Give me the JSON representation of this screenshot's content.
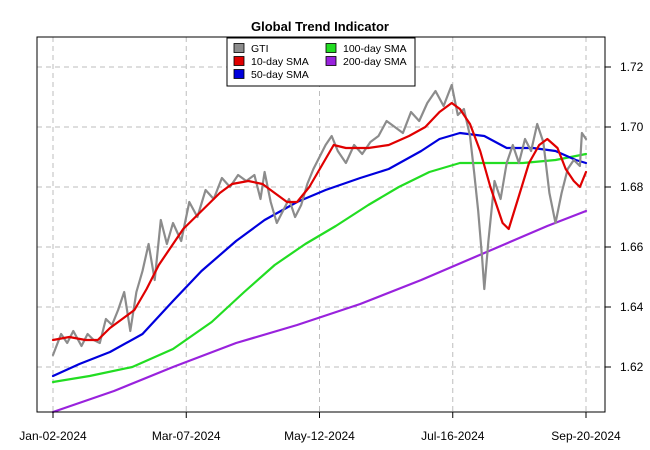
{
  "chart_data": {
    "type": "line",
    "title": "Global Trend Indicator",
    "xlabel": "",
    "ylabel": "",
    "x_start": "2024-01-02",
    "x_end": "2024-09-20",
    "x_ticks": [
      "Jan-02-2024",
      "Mar-07-2024",
      "May-12-2024",
      "Jul-16-2024",
      "Sep-20-2024"
    ],
    "y_ticks": [
      "1.62",
      "1.64",
      "1.66",
      "1.68",
      "1.70",
      "1.72"
    ],
    "ylim": [
      1.605,
      1.73
    ],
    "grid": true,
    "legend_position": "top-center",
    "series": [
      {
        "name": "GTI",
        "color": "#8c8c8c",
        "points": [
          [
            "2024-01-02",
            1.624
          ],
          [
            "2024-01-06",
            1.631
          ],
          [
            "2024-01-09",
            1.628
          ],
          [
            "2024-01-12",
            1.632
          ],
          [
            "2024-01-16",
            1.627
          ],
          [
            "2024-01-19",
            1.631
          ],
          [
            "2024-01-22",
            1.629
          ],
          [
            "2024-01-25",
            1.628
          ],
          [
            "2024-01-28",
            1.636
          ],
          [
            "2024-01-31",
            1.634
          ],
          [
            "2024-02-03",
            1.639
          ],
          [
            "2024-02-06",
            1.645
          ],
          [
            "2024-02-09",
            1.632
          ],
          [
            "2024-02-12",
            1.645
          ],
          [
            "2024-02-15",
            1.652
          ],
          [
            "2024-02-18",
            1.661
          ],
          [
            "2024-02-21",
            1.649
          ],
          [
            "2024-02-24",
            1.669
          ],
          [
            "2024-02-27",
            1.661
          ],
          [
            "2024-03-01",
            1.668
          ],
          [
            "2024-03-05",
            1.662
          ],
          [
            "2024-03-09",
            1.675
          ],
          [
            "2024-03-13",
            1.67
          ],
          [
            "2024-03-17",
            1.679
          ],
          [
            "2024-03-21",
            1.676
          ],
          [
            "2024-03-25",
            1.683
          ],
          [
            "2024-03-29",
            1.68
          ],
          [
            "2024-04-02",
            1.684
          ],
          [
            "2024-04-06",
            1.682
          ],
          [
            "2024-04-10",
            1.684
          ],
          [
            "2024-04-13",
            1.676
          ],
          [
            "2024-04-15",
            1.685
          ],
          [
            "2024-04-18",
            1.675
          ],
          [
            "2024-04-21",
            1.668
          ],
          [
            "2024-04-24",
            1.672
          ],
          [
            "2024-04-27",
            1.676
          ],
          [
            "2024-04-30",
            1.67
          ],
          [
            "2024-05-03",
            1.674
          ],
          [
            "2024-05-06",
            1.681
          ],
          [
            "2024-05-09",
            1.686
          ],
          [
            "2024-05-12",
            1.69
          ],
          [
            "2024-05-15",
            1.694
          ],
          [
            "2024-05-18",
            1.697
          ],
          [
            "2024-05-21",
            1.692
          ],
          [
            "2024-05-25",
            1.688
          ],
          [
            "2024-05-29",
            1.694
          ],
          [
            "2024-06-02",
            1.691
          ],
          [
            "2024-06-06",
            1.695
          ],
          [
            "2024-06-10",
            1.697
          ],
          [
            "2024-06-14",
            1.702
          ],
          [
            "2024-06-18",
            1.7
          ],
          [
            "2024-06-22",
            1.698
          ],
          [
            "2024-06-26",
            1.705
          ],
          [
            "2024-06-30",
            1.702
          ],
          [
            "2024-07-04",
            1.708
          ],
          [
            "2024-07-08",
            1.712
          ],
          [
            "2024-07-12",
            1.707
          ],
          [
            "2024-07-16",
            1.714
          ],
          [
            "2024-07-19",
            1.704
          ],
          [
            "2024-07-22",
            1.706
          ],
          [
            "2024-07-25",
            1.697
          ],
          [
            "2024-07-27",
            1.685
          ],
          [
            "2024-07-29",
            1.672
          ],
          [
            "2024-07-31",
            1.656
          ],
          [
            "2024-08-01",
            1.646
          ],
          [
            "2024-08-03",
            1.662
          ],
          [
            "2024-08-06",
            1.682
          ],
          [
            "2024-08-09",
            1.676
          ],
          [
            "2024-08-12",
            1.688
          ],
          [
            "2024-08-15",
            1.694
          ],
          [
            "2024-08-18",
            1.688
          ],
          [
            "2024-08-21",
            1.696
          ],
          [
            "2024-08-24",
            1.692
          ],
          [
            "2024-08-27",
            1.701
          ],
          [
            "2024-08-30",
            1.695
          ],
          [
            "2024-09-02",
            1.678
          ],
          [
            "2024-09-05",
            1.668
          ],
          [
            "2024-09-08",
            1.678
          ],
          [
            "2024-09-11",
            1.686
          ],
          [
            "2024-09-14",
            1.689
          ],
          [
            "2024-09-17",
            1.687
          ],
          [
            "2024-09-18",
            1.698
          ],
          [
            "2024-09-20",
            1.696
          ]
        ]
      },
      {
        "name": "10-day SMA",
        "color": "#e00000",
        "points": [
          [
            "2024-01-02",
            1.629
          ],
          [
            "2024-01-10",
            1.63
          ],
          [
            "2024-01-18",
            1.629
          ],
          [
            "2024-01-24",
            1.629
          ],
          [
            "2024-01-30",
            1.633
          ],
          [
            "2024-02-05",
            1.636
          ],
          [
            "2024-02-11",
            1.639
          ],
          [
            "2024-02-17",
            1.646
          ],
          [
            "2024-02-23",
            1.654
          ],
          [
            "2024-02-29",
            1.66
          ],
          [
            "2024-03-06",
            1.666
          ],
          [
            "2024-03-12",
            1.67
          ],
          [
            "2024-03-18",
            1.674
          ],
          [
            "2024-03-24",
            1.678
          ],
          [
            "2024-03-30",
            1.681
          ],
          [
            "2024-04-07",
            1.682
          ],
          [
            "2024-04-14",
            1.681
          ],
          [
            "2024-04-20",
            1.678
          ],
          [
            "2024-04-26",
            1.675
          ],
          [
            "2024-05-01",
            1.675
          ],
          [
            "2024-05-07",
            1.68
          ],
          [
            "2024-05-13",
            1.687
          ],
          [
            "2024-05-19",
            1.694
          ],
          [
            "2024-05-25",
            1.693
          ],
          [
            "2024-06-05",
            1.693
          ],
          [
            "2024-06-15",
            1.694
          ],
          [
            "2024-06-25",
            1.697
          ],
          [
            "2024-07-03",
            1.7
          ],
          [
            "2024-07-10",
            1.705
          ],
          [
            "2024-07-16",
            1.708
          ],
          [
            "2024-07-20",
            1.706
          ],
          [
            "2024-07-25",
            1.701
          ],
          [
            "2024-07-30",
            1.692
          ],
          [
            "2024-08-04",
            1.68
          ],
          [
            "2024-08-10",
            1.668
          ],
          [
            "2024-08-13",
            1.666
          ],
          [
            "2024-08-18",
            1.677
          ],
          [
            "2024-08-23",
            1.688
          ],
          [
            "2024-08-28",
            1.694
          ],
          [
            "2024-09-01",
            1.696
          ],
          [
            "2024-09-06",
            1.693
          ],
          [
            "2024-09-10",
            1.686
          ],
          [
            "2024-09-14",
            1.682
          ],
          [
            "2024-09-17",
            1.68
          ],
          [
            "2024-09-20",
            1.685
          ]
        ]
      },
      {
        "name": "50-day SMA",
        "color": "#0000dd",
        "points": [
          [
            "2024-01-02",
            1.617
          ],
          [
            "2024-01-15",
            1.621
          ],
          [
            "2024-01-30",
            1.625
          ],
          [
            "2024-02-15",
            1.631
          ],
          [
            "2024-03-01",
            1.642
          ],
          [
            "2024-03-15",
            1.652
          ],
          [
            "2024-04-01",
            1.662
          ],
          [
            "2024-04-15",
            1.669
          ],
          [
            "2024-05-01",
            1.675
          ],
          [
            "2024-05-15",
            1.679
          ],
          [
            "2024-06-01",
            1.683
          ],
          [
            "2024-06-15",
            1.686
          ],
          [
            "2024-07-01",
            1.692
          ],
          [
            "2024-07-10",
            1.696
          ],
          [
            "2024-07-20",
            1.698
          ],
          [
            "2024-08-01",
            1.697
          ],
          [
            "2024-08-12",
            1.693
          ],
          [
            "2024-08-25",
            1.693
          ],
          [
            "2024-09-05",
            1.692
          ],
          [
            "2024-09-15",
            1.689
          ],
          [
            "2024-09-20",
            1.688
          ]
        ]
      },
      {
        "name": "100-day SMA",
        "color": "#22dd22",
        "points": [
          [
            "2024-01-02",
            1.615
          ],
          [
            "2024-01-20",
            1.617
          ],
          [
            "2024-02-10",
            1.62
          ],
          [
            "2024-03-01",
            1.626
          ],
          [
            "2024-03-20",
            1.635
          ],
          [
            "2024-04-05",
            1.645
          ],
          [
            "2024-04-20",
            1.654
          ],
          [
            "2024-05-05",
            1.661
          ],
          [
            "2024-05-20",
            1.667
          ],
          [
            "2024-06-05",
            1.674
          ],
          [
            "2024-06-20",
            1.68
          ],
          [
            "2024-07-05",
            1.685
          ],
          [
            "2024-07-20",
            1.688
          ],
          [
            "2024-08-05",
            1.688
          ],
          [
            "2024-08-20",
            1.688
          ],
          [
            "2024-09-05",
            1.689
          ],
          [
            "2024-09-20",
            1.691
          ]
        ]
      },
      {
        "name": "200-day SMA",
        "color": "#9922dd",
        "points": [
          [
            "2024-01-02",
            1.605
          ],
          [
            "2024-02-01",
            1.612
          ],
          [
            "2024-03-01",
            1.62
          ],
          [
            "2024-04-01",
            1.628
          ],
          [
            "2024-05-01",
            1.634
          ],
          [
            "2024-06-01",
            1.641
          ],
          [
            "2024-07-01",
            1.649
          ],
          [
            "2024-08-01",
            1.658
          ],
          [
            "2024-09-01",
            1.667
          ],
          [
            "2024-09-20",
            1.672
          ]
        ]
      }
    ]
  }
}
